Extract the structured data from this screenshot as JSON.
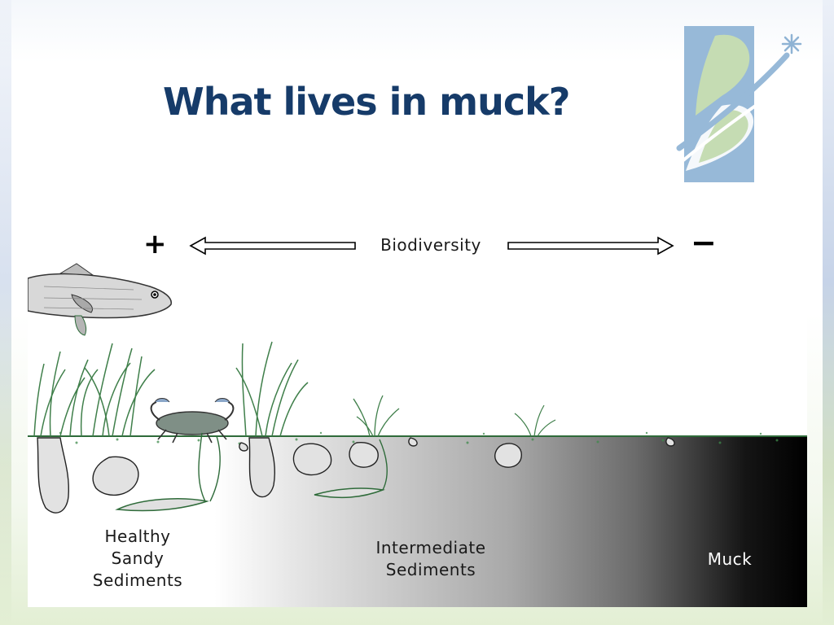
{
  "slide": {
    "title": "What lives in muck?"
  },
  "diagram": {
    "biodiversity_label": "Biodiversity",
    "plus_symbol": "+",
    "minus_symbol": "−",
    "zones": [
      {
        "line1": "Healthy",
        "line2": "Sandy",
        "line3": "Sediments"
      },
      {
        "line1": "Intermediate",
        "line2": "Sediments"
      },
      {
        "line1": "Muck"
      }
    ]
  },
  "colors": {
    "title": "#163b69",
    "logo_blue": "#97b9d8",
    "logo_green": "#c5dcb3",
    "seagrass": "#3f7f4a",
    "sediment_light": "#ffffff",
    "sediment_dark": "#000000"
  },
  "icons": [
    "biodiversity-double-arrow",
    "fish-icon",
    "crab-icon",
    "seagrass-icon",
    "clam-icon"
  ]
}
